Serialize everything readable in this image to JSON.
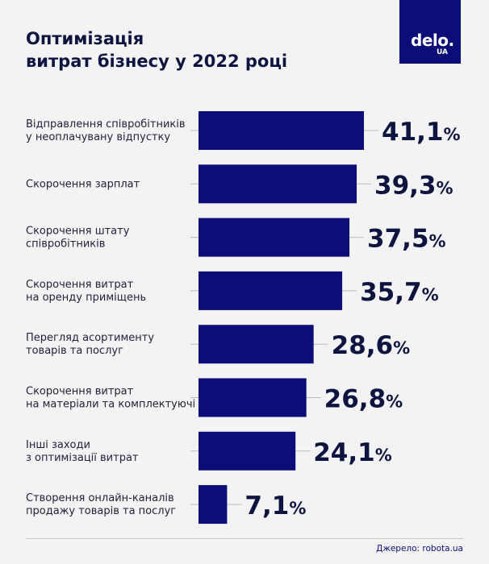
{
  "header": {
    "title_line1": "Оптимізація",
    "title_line2": "витрат бізнесу у 2022 році"
  },
  "logo": {
    "word": "delo.",
    "suffix": "UA"
  },
  "chart_data": {
    "type": "bar",
    "orientation": "horizontal",
    "title": "Оптимізація витрат бізнесу у 2022 році",
    "unit": "%",
    "categories": [
      [
        "Відправлення співробітників",
        "у неоплачувану відпустку"
      ],
      [
        "Скорочення зарплат"
      ],
      [
        "Скорочення штату",
        " співробітників"
      ],
      [
        "Скорочення витрат",
        "на оренду приміщень"
      ],
      [
        "Перегляд асортименту",
        "товарів та послуг"
      ],
      [
        "Скорочення витрат",
        "на матеріали та комплектуючі"
      ],
      [
        "Інші заходи",
        "з оптимізації витрат"
      ],
      [
        "Створення онлайн-каналів",
        "продажу товарів та послуг"
      ]
    ],
    "values": [
      41.1,
      39.3,
      37.5,
      35.7,
      28.6,
      26.8,
      24.1,
      7.1
    ],
    "value_labels": [
      "41,1",
      "39,3",
      "37,5",
      "35,7",
      "28,6",
      "26,8",
      "24,1",
      "7,1"
    ],
    "bar_color": "#0d0d7a",
    "xlim": [
      0,
      41.1
    ]
  },
  "footer": {
    "source": "Джерело: robota.ua"
  },
  "colors": {
    "accent": "#0d0d7a",
    "background": "#f3f3f3",
    "text": "#0e1440"
  }
}
